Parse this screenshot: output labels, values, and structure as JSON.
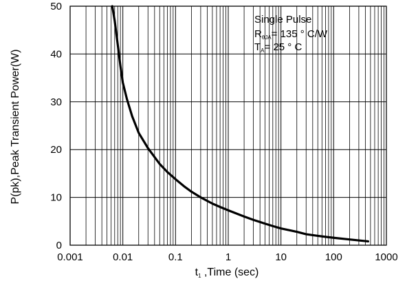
{
  "chart_data": {
    "type": "line",
    "xscale": "log",
    "xlim": [
      0.001,
      1000
    ],
    "ylim": [
      0,
      50
    ],
    "grid": true,
    "x_ticks": [
      "0.001",
      "0.01",
      "0.1",
      "1",
      "10",
      "100",
      "1000"
    ],
    "y_ticks": [
      "0",
      "10",
      "20",
      "30",
      "40",
      "50"
    ],
    "ylabel": "P(pk),Peak Transient Power(W)",
    "xlabel": {
      "main": "t",
      "sub": "1",
      "rest": " ,Time (sec)"
    },
    "annotation": {
      "line1": "Single Pulse",
      "line2_main": "R",
      "line2_sub": "θJA",
      "line2_rest": "= 135 ° C/W",
      "line3_main": "T",
      "line3_sub": "A",
      "line3_rest": "= 25 ° C"
    },
    "series": [
      {
        "x": [
          0.0063,
          0.007,
          0.008,
          0.009,
          0.01,
          0.012,
          0.015,
          0.02,
          0.03,
          0.05,
          0.07,
          0.1,
          0.15,
          0.2,
          0.3,
          0.5,
          0.7,
          1,
          2,
          3,
          5,
          7,
          10,
          20,
          30,
          50,
          70,
          100,
          200,
          300,
          450
        ],
        "y": [
          50,
          47,
          42,
          37.5,
          34,
          30.5,
          27,
          23.5,
          20.3,
          17,
          15.3,
          13.8,
          12.2,
          11.2,
          10,
          8.7,
          8,
          7.3,
          6,
          5.3,
          4.5,
          4,
          3.5,
          2.8,
          2.3,
          1.95,
          1.75,
          1.55,
          1.2,
          1.0,
          0.8
        ]
      }
    ]
  }
}
